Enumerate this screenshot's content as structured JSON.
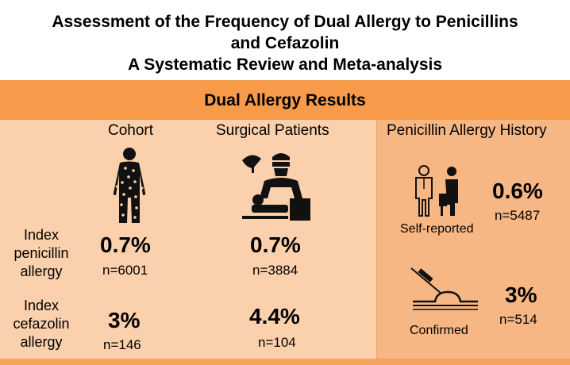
{
  "title": {
    "line1": "Assessment of the Frequency of Dual Allergy to Penicillins",
    "line2": "and Cefazolin",
    "line3": "A Systematic Review and Meta-analysis"
  },
  "section_label": "Dual Allergy Results",
  "columns": {
    "cohort": "Cohort",
    "surgical": "Surgical Patients",
    "history": "Penicillin Allergy History"
  },
  "rows": {
    "penicillin": [
      "Index",
      "penicillin",
      "allergy"
    ],
    "cefazolin": [
      "Index",
      "cefazolin",
      "allergy"
    ]
  },
  "values": {
    "cohort_penicillin": {
      "pct": "0.7%",
      "n": "n=6001"
    },
    "cohort_cefazolin": {
      "pct": "3%",
      "n": "n=146"
    },
    "surgical_penicillin": {
      "pct": "0.7%",
      "n": "n=3884"
    },
    "surgical_cefazolin": {
      "pct": "4.4%",
      "n": "n=104"
    },
    "self_reported": {
      "label": "Self-reported",
      "pct": "0.6%",
      "n": "n=5487"
    },
    "confirmed": {
      "label": "Confirmed",
      "pct": "3%",
      "n": "n=514"
    }
  },
  "icons": [
    "person-rash-icon",
    "surgeon-patient-icon",
    "doctor-patient-icon",
    "skin-test-icon"
  ],
  "colors": {
    "band": "#f79a4a",
    "panel_left": "#fbd0ac",
    "panel_right": "#f7b784"
  }
}
